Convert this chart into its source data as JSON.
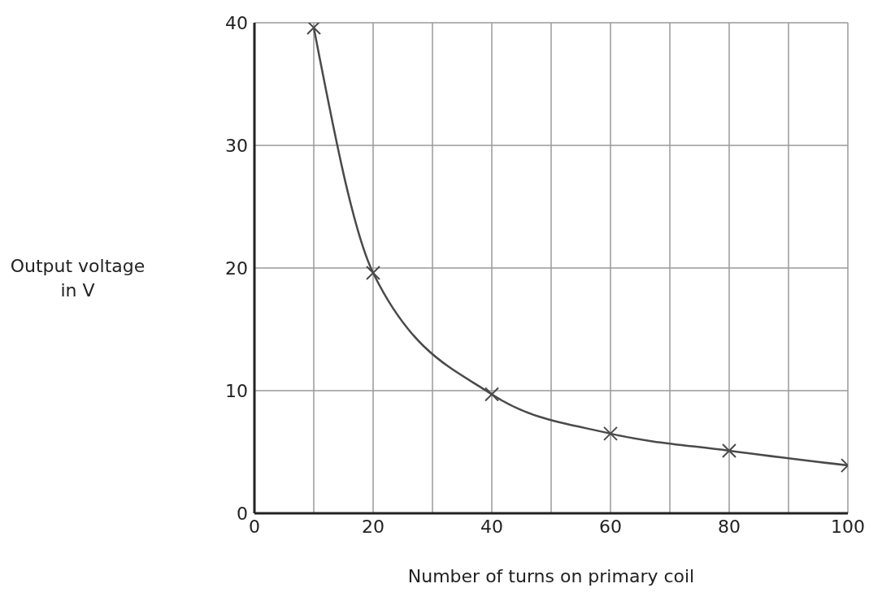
{
  "chart_data": {
    "type": "line",
    "xlabel": "Number of turns on primary coil",
    "ylabel": "Output voltage in V",
    "x": [
      10,
      20,
      40,
      60,
      80,
      100
    ],
    "series": [
      {
        "color": "#4a4a4a",
        "values": [
          39.6,
          19.6,
          9.7,
          6.5,
          5.1,
          3.9
        ]
      }
    ],
    "xlim": [
      0,
      100
    ],
    "xticks": [
      0,
      {
        "value": 10,
        "label": null
      },
      20,
      {
        "value": 30,
        "label": null
      },
      40,
      {
        "value": 50,
        "label": null
      },
      60,
      {
        "value": 70,
        "label": null
      },
      80,
      {
        "value": 90,
        "label": null
      },
      100
    ],
    "ylim": [
      0,
      40
    ],
    "yticks": [
      0,
      10,
      20,
      30,
      40
    ],
    "grid": true,
    "marker": "cross",
    "line_style": "solid"
  }
}
